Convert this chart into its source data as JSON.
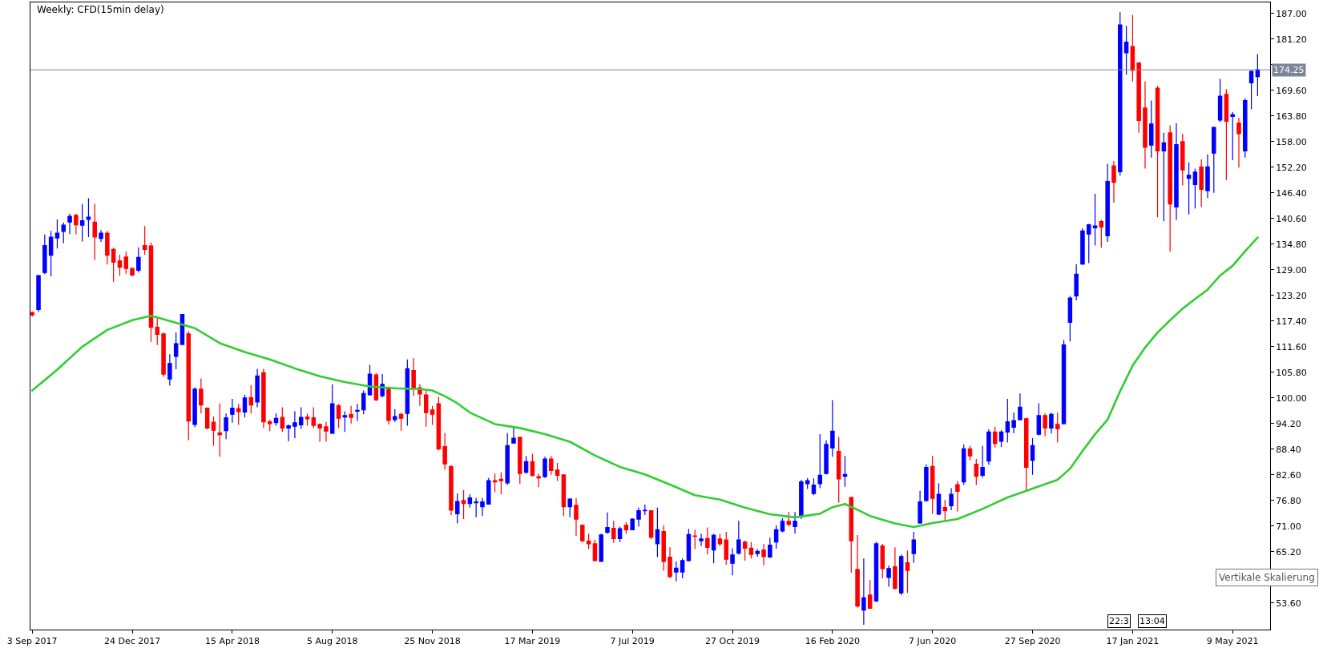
{
  "chart_data": {
    "type": "candlestick",
    "title": "Weekly: CFD(15min delay)",
    "x": [
      "2017-09-03",
      "2017-09-10",
      "2017-09-17",
      "2017-09-24",
      "2017-10-01",
      "2017-10-08",
      "2017-10-15",
      "2017-10-22",
      "2017-10-29",
      "2017-11-05",
      "2017-11-12",
      "2017-11-19",
      "2017-11-26",
      "2017-12-03",
      "2017-12-10",
      "2017-12-17",
      "2017-12-24",
      "2017-12-31",
      "2018-01-07",
      "2018-01-14",
      "2018-01-21",
      "2018-01-28",
      "2018-02-04",
      "2018-02-11",
      "2018-02-18",
      "2018-02-25",
      "2018-03-04",
      "2018-03-11",
      "2018-03-18",
      "2018-03-25",
      "2018-04-01",
      "2018-04-08",
      "2018-04-15",
      "2018-04-22",
      "2018-04-29",
      "2018-05-06",
      "2018-05-13",
      "2018-05-20",
      "2018-05-27",
      "2018-06-03",
      "2018-06-10",
      "2018-06-17",
      "2018-06-24",
      "2018-07-01",
      "2018-07-08",
      "2018-07-15",
      "2018-07-22",
      "2018-07-29",
      "2018-08-05",
      "2018-08-12",
      "2018-08-19",
      "2018-08-26",
      "2018-09-02",
      "2018-09-09",
      "2018-09-16",
      "2018-09-23",
      "2018-09-30",
      "2018-10-07",
      "2018-10-14",
      "2018-10-21",
      "2018-10-28",
      "2018-11-04",
      "2018-11-11",
      "2018-11-18",
      "2018-11-25",
      "2018-12-02",
      "2018-12-09",
      "2018-12-16",
      "2018-12-23",
      "2018-12-30",
      "2019-01-06",
      "2019-01-13",
      "2019-01-20",
      "2019-01-27",
      "2019-02-03",
      "2019-02-10",
      "2019-02-17",
      "2019-02-24",
      "2019-03-03",
      "2019-03-10",
      "2019-03-17",
      "2019-03-24",
      "2019-03-31",
      "2019-04-07",
      "2019-04-14",
      "2019-04-21",
      "2019-04-28",
      "2019-05-05",
      "2019-05-12",
      "2019-05-19",
      "2019-05-26",
      "2019-06-02",
      "2019-06-09",
      "2019-06-16",
      "2019-06-23",
      "2019-06-30",
      "2019-07-07",
      "2019-07-14",
      "2019-07-21",
      "2019-07-28",
      "2019-08-04",
      "2019-08-11",
      "2019-08-18",
      "2019-08-25",
      "2019-09-01",
      "2019-09-08",
      "2019-09-15",
      "2019-09-22",
      "2019-09-29",
      "2019-10-06",
      "2019-10-13",
      "2019-10-20",
      "2019-10-27",
      "2019-11-03",
      "2019-11-10",
      "2019-11-17",
      "2019-11-24",
      "2019-12-01",
      "2019-12-08",
      "2019-12-15",
      "2019-12-22",
      "2019-12-29",
      "2020-01-05",
      "2020-01-12",
      "2020-01-19",
      "2020-01-26",
      "2020-02-02",
      "2020-02-09",
      "2020-02-16",
      "2020-02-23",
      "2020-03-01",
      "2020-03-08",
      "2020-03-15",
      "2020-03-22",
      "2020-03-29",
      "2020-04-05",
      "2020-04-12",
      "2020-04-19",
      "2020-04-26",
      "2020-05-03",
      "2020-05-10",
      "2020-05-17",
      "2020-05-24",
      "2020-05-31",
      "2020-06-07",
      "2020-06-14",
      "2020-06-21",
      "2020-06-28",
      "2020-07-05",
      "2020-07-12",
      "2020-07-19",
      "2020-07-26",
      "2020-08-02",
      "2020-08-09",
      "2020-08-16",
      "2020-08-23",
      "2020-08-30",
      "2020-09-06",
      "2020-09-13",
      "2020-09-20",
      "2020-09-27",
      "2020-10-04",
      "2020-10-11",
      "2020-10-18",
      "2020-10-25",
      "2020-11-01",
      "2020-11-08",
      "2020-11-15",
      "2020-11-22",
      "2020-11-29",
      "2020-12-06",
      "2020-12-13",
      "2020-12-20",
      "2020-12-27",
      "2021-01-03",
      "2021-01-10",
      "2021-01-17",
      "2021-01-24",
      "2021-01-31",
      "2021-02-07",
      "2021-02-14",
      "2021-02-21",
      "2021-02-28",
      "2021-03-07",
      "2021-03-14",
      "2021-03-21",
      "2021-03-28",
      "2021-04-04",
      "2021-04-11",
      "2021-04-18",
      "2021-04-25",
      "2021-05-02",
      "2021-05-09",
      "2021-05-16",
      "2021-05-23",
      "2021-05-30",
      "2021-06-06"
    ],
    "ohlc": [
      [
        119.3,
        119.6,
        118.4,
        118.8
      ],
      [
        120.0,
        127.9,
        119.5,
        127.7
      ],
      [
        128.4,
        137.0,
        128.0,
        134.5
      ],
      [
        132.3,
        137.8,
        127.5,
        136.4
      ],
      [
        136.2,
        140.4,
        133.8,
        137.3
      ],
      [
        137.7,
        139.7,
        135.0,
        139.1
      ],
      [
        139.8,
        141.7,
        137.1,
        141.1
      ],
      [
        141.3,
        141.7,
        137.0,
        139.2
      ],
      [
        139.1,
        143.9,
        135.4,
        140.1
      ],
      [
        140.4,
        145.2,
        136.4,
        140.9
      ],
      [
        139.8,
        143.9,
        131.2,
        136.4
      ],
      [
        136.1,
        138.0,
        135.3,
        137.3
      ],
      [
        137.3,
        137.8,
        130.2,
        132.3
      ],
      [
        133.6,
        134.0,
        126.3,
        130.7
      ],
      [
        131.0,
        132.4,
        127.7,
        129.6
      ],
      [
        131.9,
        133.1,
        128.1,
        129.3
      ],
      [
        129.3,
        129.5,
        127.5,
        127.8
      ],
      [
        128.9,
        134.1,
        128.4,
        131.8
      ],
      [
        134.5,
        138.9,
        132.4,
        133.6
      ],
      [
        134.4,
        135.2,
        112.7,
        116.0
      ],
      [
        116.0,
        118.1,
        112.0,
        114.4
      ],
      [
        114.5,
        114.8,
        104.8,
        105.4
      ],
      [
        104.3,
        109.9,
        102.8,
        107.8
      ],
      [
        109.4,
        114.8,
        106.5,
        112.3
      ],
      [
        112.1,
        119.0,
        112.0,
        118.9
      ],
      [
        114.5,
        115.1,
        90.4,
        94.8
      ],
      [
        94.0,
        102.4,
        93.4,
        102.0
      ],
      [
        102.0,
        104.4,
        96.5,
        98.4
      ],
      [
        97.7,
        97.9,
        92.9,
        93.2
      ],
      [
        94.5,
        95.8,
        89.2,
        92.7
      ],
      [
        92.1,
        98.8,
        86.7,
        91.7
      ],
      [
        92.6,
        96.5,
        90.7,
        95.5
      ],
      [
        96.3,
        99.8,
        94.4,
        97.7
      ],
      [
        97.6,
        98.7,
        93.9,
        96.9
      ],
      [
        96.8,
        100.7,
        95.6,
        100.0
      ],
      [
        100.1,
        102.9,
        96.5,
        98.4
      ],
      [
        99.1,
        106.6,
        97.9,
        105.0
      ],
      [
        105.7,
        106.6,
        93.2,
        94.6
      ],
      [
        94.6,
        95.1,
        92.5,
        94.2
      ],
      [
        94.4,
        96.5,
        93.7,
        95.4
      ],
      [
        95.6,
        97.9,
        92.3,
        93.2
      ],
      [
        93.2,
        94.0,
        90.2,
        93.7
      ],
      [
        93.6,
        97.0,
        90.9,
        94.4
      ],
      [
        93.9,
        97.9,
        93.0,
        95.6
      ],
      [
        95.7,
        96.5,
        93.7,
        95.3
      ],
      [
        95.5,
        97.9,
        93.2,
        93.8
      ],
      [
        94.0,
        94.2,
        90.1,
        93.2
      ],
      [
        93.5,
        94.6,
        90.1,
        92.5
      ],
      [
        92.0,
        103.1,
        91.8,
        98.7
      ],
      [
        98.3,
        98.6,
        93.2,
        95.4
      ],
      [
        95.7,
        97.0,
        92.3,
        96.0
      ],
      [
        96.3,
        98.2,
        94.2,
        95.6
      ],
      [
        97.0,
        98.7,
        94.8,
        97.2
      ],
      [
        97.3,
        101.7,
        96.3,
        101.0
      ],
      [
        100.7,
        107.5,
        100.5,
        105.4
      ],
      [
        105.2,
        105.7,
        99.3,
        99.6
      ],
      [
        100.5,
        105.4,
        100.1,
        103.1
      ],
      [
        102.1,
        102.6,
        94.0,
        94.9
      ],
      [
        95.1,
        97.5,
        94.6,
        95.8
      ],
      [
        96.3,
        96.7,
        92.6,
        95.4
      ],
      [
        96.5,
        108.7,
        93.7,
        106.6
      ],
      [
        106.2,
        109.0,
        100.5,
        102.1
      ],
      [
        102.3,
        103.1,
        98.2,
        100.9
      ],
      [
        100.7,
        102.0,
        93.5,
        96.7
      ],
      [
        97.3,
        98.2,
        93.9,
        96.3
      ],
      [
        98.7,
        100.3,
        88.1,
        88.5
      ],
      [
        89.0,
        92.1,
        83.8,
        85.1
      ],
      [
        84.5,
        84.8,
        73.5,
        74.6
      ],
      [
        73.8,
        78.4,
        71.6,
        76.6
      ],
      [
        76.8,
        79.2,
        72.6,
        76.1
      ],
      [
        76.1,
        78.2,
        75.2,
        77.4
      ],
      [
        76.3,
        77.4,
        73.0,
        76.5
      ],
      [
        75.4,
        77.4,
        73.3,
        76.5
      ],
      [
        76.0,
        81.9,
        75.9,
        81.3
      ],
      [
        81.3,
        82.9,
        78.7,
        81.0
      ],
      [
        81.6,
        83.2,
        78.2,
        81.3
      ],
      [
        80.8,
        92.1,
        80.3,
        89.2
      ],
      [
        89.8,
        93.4,
        89.8,
        90.9
      ],
      [
        91.1,
        91.2,
        80.6,
        82.9
      ],
      [
        83.2,
        86.9,
        82.9,
        85.6
      ],
      [
        85.6,
        87.4,
        82.2,
        82.5
      ],
      [
        82.2,
        82.9,
        79.8,
        81.9
      ],
      [
        82.2,
        86.7,
        81.9,
        86.2
      ],
      [
        86.2,
        86.9,
        82.6,
        83.6
      ],
      [
        83.7,
        85.3,
        81.2,
        82.5
      ],
      [
        82.6,
        82.7,
        73.3,
        75.4
      ],
      [
        75.4,
        77.3,
        73.0,
        77.1
      ],
      [
        75.7,
        77.3,
        68.8,
        72.6
      ],
      [
        71.2,
        71.4,
        67.4,
        67.7
      ],
      [
        67.6,
        69.3,
        65.8,
        67.0
      ],
      [
        67.0,
        67.9,
        63.0,
        63.2
      ],
      [
        63.0,
        69.3,
        63.0,
        69.0
      ],
      [
        69.6,
        74.1,
        69.3,
        70.7
      ],
      [
        70.5,
        72.2,
        67.2,
        68.2
      ],
      [
        68.2,
        70.9,
        67.4,
        70.4
      ],
      [
        71.2,
        71.9,
        69.3,
        70.2
      ],
      [
        70.2,
        72.8,
        70.1,
        72.6
      ],
      [
        72.6,
        75.2,
        70.9,
        74.5
      ],
      [
        74.5,
        75.9,
        73.5,
        74.6
      ],
      [
        74.5,
        74.6,
        68.1,
        68.5
      ],
      [
        67.0,
        75.2,
        64.0,
        70.2
      ],
      [
        69.8,
        71.2,
        60.9,
        63.0
      ],
      [
        64.0,
        66.2,
        59.3,
        59.6
      ],
      [
        60.6,
        63.0,
        58.5,
        61.5
      ],
      [
        60.6,
        63.7,
        59.2,
        63.2
      ],
      [
        63.2,
        70.4,
        63.0,
        69.1
      ],
      [
        68.8,
        70.2,
        65.8,
        68.7
      ],
      [
        67.7,
        69.3,
        66.5,
        68.1
      ],
      [
        68.2,
        70.7,
        64.6,
        66.2
      ],
      [
        65.6,
        69.3,
        62.6,
        68.9
      ],
      [
        68.1,
        69.3,
        66.5,
        67.0
      ],
      [
        67.9,
        69.7,
        62.3,
        63.5
      ],
      [
        62.6,
        66.0,
        59.9,
        64.5
      ],
      [
        64.9,
        72.2,
        64.6,
        67.9
      ],
      [
        67.4,
        67.7,
        63.2,
        66.0
      ],
      [
        66.0,
        67.4,
        63.7,
        64.6
      ],
      [
        64.8,
        65.8,
        64.1,
        65.3
      ],
      [
        65.6,
        67.0,
        62.1,
        64.1
      ],
      [
        64.0,
        68.4,
        63.8,
        66.7
      ],
      [
        67.4,
        71.2,
        65.9,
        70.2
      ],
      [
        69.9,
        72.8,
        69.6,
        72.1
      ],
      [
        72.1,
        74.2,
        71.0,
        71.4
      ],
      [
        70.9,
        74.2,
        69.3,
        72.1
      ],
      [
        73.1,
        81.5,
        72.6,
        81.0
      ],
      [
        80.6,
        81.9,
        79.4,
        81.3
      ],
      [
        78.4,
        81.8,
        78.0,
        80.3
      ],
      [
        80.6,
        91.8,
        79.6,
        82.5
      ],
      [
        82.9,
        90.4,
        82.7,
        89.5
      ],
      [
        88.7,
        99.5,
        86.7,
        92.5
      ],
      [
        87.9,
        91.2,
        76.3,
        81.7
      ],
      [
        82.3,
        86.9,
        79.9,
        82.7
      ],
      [
        77.5,
        77.7,
        60.4,
        67.7
      ],
      [
        61.2,
        69.0,
        52.6,
        52.9
      ],
      [
        52.0,
        63.7,
        48.7,
        54.8
      ],
      [
        55.4,
        58.8,
        52.2,
        52.4
      ],
      [
        54.1,
        67.4,
        53.8,
        67.0
      ],
      [
        66.5,
        67.0,
        59.2,
        61.4
      ],
      [
        59.4,
        62.1,
        57.3,
        61.4
      ],
      [
        61.8,
        66.2,
        56.7,
        56.9
      ],
      [
        55.9,
        64.6,
        55.4,
        64.1
      ],
      [
        62.7,
        65.5,
        55.9,
        61.0
      ],
      [
        64.8,
        69.7,
        62.7,
        67.9
      ],
      [
        71.7,
        79.0,
        71.5,
        76.5
      ],
      [
        76.8,
        85.0,
        76.5,
        84.3
      ],
      [
        84.5,
        86.9,
        73.8,
        77.3
      ],
      [
        73.7,
        80.7,
        73.5,
        78.2
      ],
      [
        75.2,
        76.9,
        72.1,
        74.5
      ],
      [
        75.6,
        79.6,
        74.6,
        78.2
      ],
      [
        80.4,
        81.2,
        74.3,
        78.9
      ],
      [
        81.0,
        89.5,
        80.3,
        88.5
      ],
      [
        88.5,
        89.2,
        85.9,
        86.9
      ],
      [
        85.0,
        86.2,
        80.3,
        82.3
      ],
      [
        82.5,
        89.2,
        82.0,
        84.3
      ],
      [
        85.7,
        92.9,
        84.9,
        92.3
      ],
      [
        92.3,
        93.5,
        88.8,
        89.7
      ],
      [
        90.2,
        92.7,
        88.9,
        92.3
      ],
      [
        92.3,
        99.8,
        89.9,
        94.6
      ],
      [
        93.4,
        96.7,
        92.0,
        94.9
      ],
      [
        95.1,
        101.0,
        94.9,
        97.9
      ],
      [
        95.3,
        95.6,
        78.9,
        84.3
      ],
      [
        85.9,
        90.9,
        82.6,
        89.2
      ],
      [
        91.8,
        98.8,
        91.5,
        96.0
      ],
      [
        96.0,
        96.5,
        91.4,
        93.2
      ],
      [
        93.2,
        96.7,
        92.0,
        96.3
      ],
      [
        94.0,
        96.7,
        89.9,
        93.0
      ],
      [
        94.2,
        113.1,
        94.0,
        112.0
      ],
      [
        117.1,
        123.1,
        112.8,
        122.6
      ],
      [
        123.1,
        130.3,
        122.1,
        128.0
      ],
      [
        130.3,
        138.4,
        130.1,
        137.8
      ],
      [
        137.1,
        139.4,
        130.5,
        139.2
      ],
      [
        138.5,
        146.2,
        134.5,
        138.9
      ],
      [
        139.9,
        140.3,
        134.0,
        138.7
      ],
      [
        136.7,
        153.0,
        135.3,
        149.0
      ],
      [
        152.5,
        153.6,
        144.2,
        148.8
      ],
      [
        151.2,
        187.3,
        150.3,
        184.4
      ],
      [
        178.1,
        184.2,
        173.2,
        180.5
      ],
      [
        179.5,
        186.7,
        171.6,
        174.1
      ],
      [
        175.8,
        176.0,
        160.0,
        162.8
      ],
      [
        165.6,
        171.6,
        151.9,
        156.7
      ],
      [
        157.2,
        167.3,
        154.4,
        162.0
      ],
      [
        170.1,
        170.6,
        140.9,
        155.9
      ],
      [
        155.9,
        160.0,
        140.0,
        157.7
      ],
      [
        160.0,
        161.7,
        133.1,
        143.9
      ],
      [
        143.2,
        162.2,
        140.3,
        157.3
      ],
      [
        158.0,
        159.8,
        148.1,
        151.6
      ],
      [
        149.7,
        153.3,
        141.5,
        150.4
      ],
      [
        148.3,
        151.9,
        142.9,
        151.1
      ],
      [
        152.3,
        154.0,
        143.2,
        147.2
      ],
      [
        146.9,
        155.1,
        145.3,
        152.3
      ],
      [
        155.4,
        161.4,
        146.4,
        161.2
      ],
      [
        162.9,
        172.2,
        162.4,
        168.3
      ],
      [
        168.7,
        169.9,
        149.3,
        162.6
      ],
      [
        163.7,
        164.7,
        153.8,
        164.1
      ],
      [
        162.2,
        163.4,
        152.1,
        159.8
      ],
      [
        155.9,
        167.8,
        154.4,
        167.3
      ],
      [
        171.3,
        174.1,
        165.3,
        173.9
      ],
      [
        172.7,
        177.8,
        168.3,
        174.25
      ]
    ],
    "colors": [
      "#ff0000",
      "#0000ff",
      "#0000ff",
      "#0000ff",
      "#0000ff",
      "#0000ff",
      "#0000ff",
      "#ff0000",
      "#0000ff",
      "#0000ff",
      "#ff0000",
      "#0000ff",
      "#ff0000",
      "#ff0000",
      "#ff0000",
      "#ff0000",
      "#ff0000",
      "#0000ff",
      "#ff0000",
      "#ff0000",
      "#ff0000",
      "#ff0000",
      "#0000ff",
      "#0000ff",
      "#0000ff",
      "#ff0000",
      "#0000ff",
      "#ff0000",
      "#ff0000",
      "#ff0000",
      "#ff0000",
      "#0000ff",
      "#0000ff",
      "#ff0000",
      "#0000ff",
      "#ff0000",
      "#0000ff",
      "#ff0000",
      "#ff0000",
      "#0000ff",
      "#ff0000",
      "#0000ff",
      "#0000ff",
      "#0000ff",
      "#ff0000",
      "#ff0000",
      "#ff0000",
      "#ff0000",
      "#0000ff",
      "#ff0000",
      "#0000ff",
      "#ff0000",
      "#0000ff",
      "#0000ff",
      "#0000ff",
      "#ff0000",
      "#0000ff",
      "#ff0000",
      "#0000ff",
      "#ff0000",
      "#0000ff",
      "#ff0000",
      "#ff0000",
      "#ff0000",
      "#ff0000",
      "#ff0000",
      "#ff0000",
      "#ff0000",
      "#0000ff",
      "#ff0000",
      "#0000ff",
      "#0000ff",
      "#0000ff",
      "#0000ff",
      "#ff0000",
      "#ff0000",
      "#0000ff",
      "#0000ff",
      "#ff0000",
      "#0000ff",
      "#ff0000",
      "#ff0000",
      "#0000ff",
      "#ff0000",
      "#ff0000",
      "#ff0000",
      "#0000ff",
      "#ff0000",
      "#ff0000",
      "#ff0000",
      "#ff0000",
      "#0000ff",
      "#0000ff",
      "#ff0000",
      "#0000ff",
      "#ff0000",
      "#0000ff",
      "#0000ff",
      "#0000ff",
      "#ff0000",
      "#0000ff",
      "#ff0000",
      "#ff0000",
      "#0000ff",
      "#0000ff",
      "#0000ff",
      "#ff0000",
      "#0000ff",
      "#ff0000",
      "#0000ff",
      "#ff0000",
      "#ff0000",
      "#0000ff",
      "#0000ff",
      "#ff0000",
      "#ff0000",
      "#0000ff",
      "#ff0000",
      "#0000ff",
      "#0000ff",
      "#0000ff",
      "#ff0000",
      "#0000ff",
      "#0000ff",
      "#0000ff",
      "#0000ff",
      "#0000ff",
      "#0000ff",
      "#0000ff",
      "#ff0000",
      "#0000ff",
      "#ff0000",
      "#ff0000",
      "#0000ff",
      "#ff0000",
      "#0000ff",
      "#ff0000",
      "#0000ff",
      "#ff0000",
      "#0000ff",
      "#ff0000",
      "#0000ff",
      "#0000ff",
      "#0000ff",
      "#ff0000",
      "#0000ff",
      "#ff0000",
      "#0000ff",
      "#ff0000",
      "#0000ff",
      "#ff0000",
      "#ff0000",
      "#0000ff",
      "#0000ff",
      "#ff0000",
      "#0000ff",
      "#0000ff",
      "#0000ff",
      "#0000ff",
      "#ff0000",
      "#0000ff",
      "#0000ff",
      "#ff0000",
      "#0000ff",
      "#ff0000",
      "#0000ff",
      "#0000ff",
      "#0000ff",
      "#0000ff",
      "#0000ff",
      "#0000ff",
      "#ff0000",
      "#0000ff",
      "#ff0000",
      "#0000ff",
      "#0000ff",
      "#ff0000",
      "#ff0000",
      "#ff0000",
      "#0000ff",
      "#ff0000",
      "#0000ff",
      "#ff0000",
      "#0000ff",
      "#ff0000",
      "#0000ff",
      "#0000ff",
      "#ff0000",
      "#0000ff",
      "#0000ff",
      "#0000ff",
      "#ff0000",
      "#0000ff",
      "#ff0000",
      "#0000ff",
      "#0000ff",
      "#0000ff"
    ],
    "series": [
      {
        "type": "line",
        "color": "#32cd32",
        "x": [
          "2017-09-03",
          "2017-10-01",
          "2017-10-29",
          "2017-11-26",
          "2017-12-24",
          "2018-01-14",
          "2018-02-04",
          "2018-03-04",
          "2018-04-01",
          "2018-04-29",
          "2018-05-27",
          "2018-06-24",
          "2018-07-22",
          "2018-08-19",
          "2018-09-16",
          "2018-10-14",
          "2018-11-11",
          "2018-11-25",
          "2018-12-09",
          "2018-12-23",
          "2019-01-06",
          "2019-02-03",
          "2019-03-03",
          "2019-03-31",
          "2019-04-28",
          "2019-05-26",
          "2019-06-23",
          "2019-07-21",
          "2019-08-18",
          "2019-09-15",
          "2019-10-13",
          "2019-11-10",
          "2019-12-08",
          "2020-01-05",
          "2020-02-02",
          "2020-02-16",
          "2020-03-01",
          "2020-03-15",
          "2020-03-29",
          "2020-04-26",
          "2020-05-17",
          "2020-06-07",
          "2020-07-05",
          "2020-08-02",
          "2020-08-30",
          "2020-09-27",
          "2020-10-25",
          "2020-11-08",
          "2020-11-22",
          "2020-12-06",
          "2020-12-20",
          "2021-01-03",
          "2021-01-17",
          "2021-01-31",
          "2021-02-14",
          "2021-02-28",
          "2021-03-14",
          "2021-03-28",
          "2021-04-11",
          "2021-04-25",
          "2021-05-09",
          "2021-05-23",
          "2021-06-06"
        ],
        "values": [
          101.7,
          106.4,
          111.6,
          115.4,
          117.6,
          118.6,
          117.4,
          115.8,
          112.4,
          110.4,
          108.7,
          106.7,
          104.9,
          103.6,
          102.6,
          102.2,
          102.0,
          101.7,
          100.4,
          98.8,
          96.7,
          94.1,
          93.2,
          91.8,
          90.1,
          87.0,
          84.4,
          82.7,
          80.4,
          78.0,
          77.0,
          75.2,
          73.7,
          73.0,
          73.8,
          75.3,
          76.0,
          74.7,
          73.3,
          71.6,
          70.8,
          71.7,
          72.6,
          74.9,
          77.5,
          79.5,
          81.5,
          84.0,
          88.0,
          91.8,
          95.1,
          101.5,
          107.3,
          111.4,
          114.8,
          117.6,
          120.2,
          122.4,
          124.5,
          127.7,
          129.9,
          133.2,
          136.3
        ]
      }
    ],
    "xlim": [
      "2017-09-01",
      "2021-06-20"
    ],
    "xticks": [
      {
        "value": "2017-09-03",
        "label": "3 Sep 2017"
      },
      {
        "value": "2017-12-24",
        "label": "24 Dec 2017"
      },
      {
        "value": "2018-04-15",
        "label": "15 Apr 2018"
      },
      {
        "value": "2018-08-05",
        "label": "5 Aug 2018"
      },
      {
        "value": "2018-11-25",
        "label": "25 Nov 2018"
      },
      {
        "value": "2019-03-17",
        "label": "17 Mar 2019"
      },
      {
        "value": "2019-07-07",
        "label": "7 Jul 2019"
      },
      {
        "value": "2019-10-27",
        "label": "27 Oct 2019"
      },
      {
        "value": "2020-02-16",
        "label": "16 Feb 2020"
      },
      {
        "value": "2020-06-07",
        "label": "7 Jun 2020"
      },
      {
        "value": "2020-09-27",
        "label": "27 Sep 2020"
      },
      {
        "value": "2021-01-17",
        "label": "17 Jan 2021"
      },
      {
        "value": "2021-05-09",
        "label": "9 May 2021"
      }
    ],
    "ylim": [
      47.6,
      189.5
    ],
    "yticks": [
      {
        "value": 53.6,
        "label": "53.60"
      },
      {
        "value": 59.4,
        "label": null
      },
      {
        "value": 65.2,
        "label": "65.20"
      },
      {
        "value": 71.0,
        "label": "71.00"
      },
      {
        "value": 76.8,
        "label": "76.80"
      },
      {
        "value": 82.6,
        "label": "82.60"
      },
      {
        "value": 88.4,
        "label": "88.40"
      },
      {
        "value": 94.2,
        "label": "94.20"
      },
      {
        "value": 100.0,
        "label": "100.00"
      },
      {
        "value": 105.8,
        "label": "105.80"
      },
      {
        "value": 111.6,
        "label": "111.60"
      },
      {
        "value": 117.4,
        "label": "117.40"
      },
      {
        "value": 123.2,
        "label": "123.20"
      },
      {
        "value": 129.0,
        "label": "129.00"
      },
      {
        "value": 134.8,
        "label": "134.80"
      },
      {
        "value": 140.6,
        "label": "140.60"
      },
      {
        "value": 146.4,
        "label": "146.40"
      },
      {
        "value": 152.2,
        "label": "152.20"
      },
      {
        "value": 158.0,
        "label": "158.00"
      },
      {
        "value": 163.8,
        "label": "163.80"
      },
      {
        "value": 169.6,
        "label": "169.60"
      },
      {
        "value": 175.4,
        "label": null
      },
      {
        "value": 181.2,
        "label": "181.20"
      },
      {
        "value": 187.0,
        "label": "187.00"
      }
    ],
    "ref_lines": [
      {
        "axis": "y",
        "value": 174.25,
        "label": "174.25",
        "color": "#7b8799"
      }
    ],
    "annotations": [
      "Vertikale Skalierung",
      "22:3",
      "13:04"
    ]
  }
}
